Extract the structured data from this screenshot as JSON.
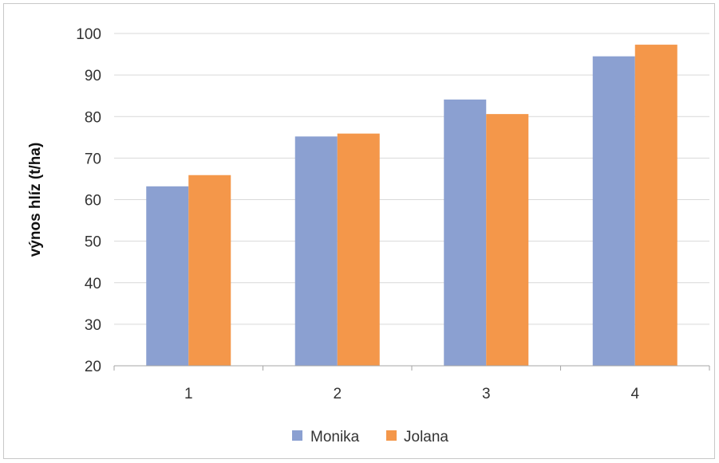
{
  "chart_data": {
    "type": "bar",
    "title": "",
    "xlabel": "",
    "ylabel": "výnos hlíz (t/ha)",
    "categories": [
      "1",
      "2",
      "3",
      "4"
    ],
    "series": [
      {
        "name": "Monika",
        "color": "#8ba0d1",
        "values": [
          63.2,
          75.2,
          84.1,
          94.5
        ]
      },
      {
        "name": "Jolana",
        "color": "#f4974a",
        "values": [
          65.9,
          75.9,
          80.6,
          97.3
        ]
      }
    ],
    "ylim": [
      20,
      100
    ],
    "yticks": [
      20,
      30,
      40,
      50,
      60,
      70,
      80,
      90,
      100
    ],
    "grid": true,
    "legend": "bottom"
  }
}
